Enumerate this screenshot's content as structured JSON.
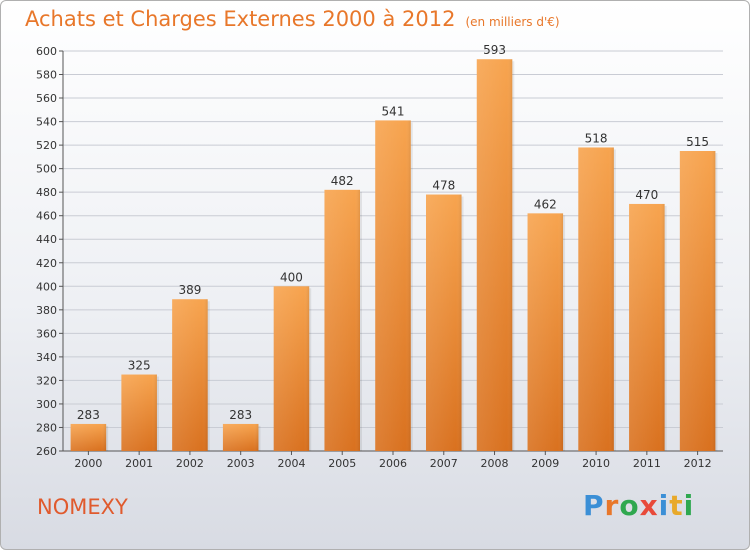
{
  "header": {
    "title": "Achats et Charges Externes 2000 à 2012",
    "unit": "(en milliers d'€)"
  },
  "footer": {
    "location": "NOMEXY",
    "logo_text": "Proxiti"
  },
  "colors": {
    "title": "#e8772a",
    "bar_light": "#f7a44f",
    "bar_dark": "#d9711f",
    "location": "#e05a2d"
  },
  "chart_data": {
    "type": "bar",
    "categories": [
      "2000",
      "2001",
      "2002",
      "2003",
      "2004",
      "2005",
      "2006",
      "2007",
      "2008",
      "2009",
      "2010",
      "2011",
      "2012"
    ],
    "values": [
      283,
      325,
      389,
      283,
      400,
      482,
      541,
      478,
      593,
      462,
      518,
      470,
      515
    ],
    "title": "Achats et Charges Externes 2000 à 2012",
    "xlabel": "",
    "ylabel": "",
    "ylim": [
      260,
      600
    ],
    "yticks": [
      260,
      280,
      300,
      320,
      340,
      360,
      380,
      400,
      420,
      440,
      460,
      480,
      500,
      520,
      540,
      560,
      580,
      600
    ],
    "grid": true
  }
}
